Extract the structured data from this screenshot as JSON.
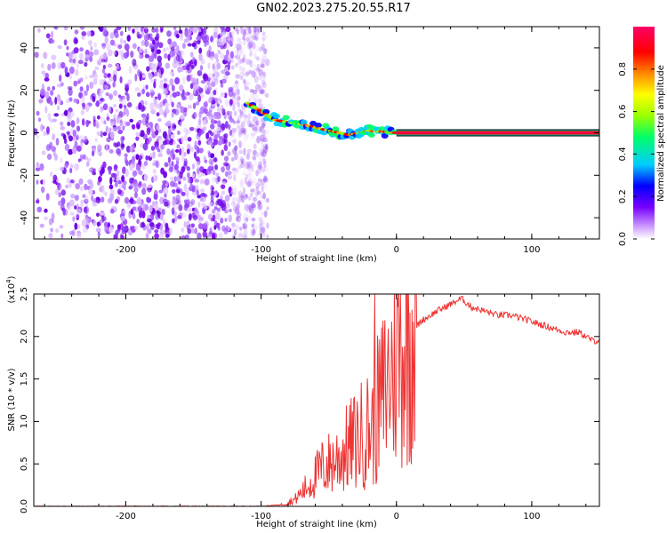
{
  "title": "GN02.2023.275.20.55.R17",
  "chart_data": [
    {
      "type": "heatmap",
      "xlabel": "Height of straight line (km)",
      "ylabel": "Frequency (Hz)",
      "xlim": [
        -268,
        150
      ],
      "ylim": [
        -50,
        50
      ],
      "xticks": [
        -200,
        -100,
        0,
        100
      ],
      "yticks": [
        -40,
        -20,
        0,
        20,
        40
      ],
      "colorbar": {
        "label": "Normalized spectral amplitude",
        "range": [
          0.0,
          1.0
        ],
        "ticks": [
          "0.0",
          "0.2",
          "0.4",
          "0.6",
          "0.8"
        ],
        "colormap": [
          "#ffffff",
          "#cc99ff",
          "#7700ff",
          "#0000ff",
          "#00ccff",
          "#00ff66",
          "#99ff00",
          "#ffff00",
          "#ff8800",
          "#ff0000",
          "#ff0066"
        ]
      },
      "description_points": {
        "noise_region_x": [
          -268,
          -105
        ],
        "signal_track": [
          {
            "x": -110,
            "y": 14
          },
          {
            "x": -90,
            "y": 6
          },
          {
            "x": -70,
            "y": 4
          },
          {
            "x": -50,
            "y": 1
          },
          {
            "x": -35,
            "y": -1
          },
          {
            "x": -20,
            "y": 1
          },
          {
            "x": 0,
            "y": 0
          },
          {
            "x": 150,
            "y": 0
          }
        ]
      }
    },
    {
      "type": "line",
      "xlabel": "Height of straight line (km)",
      "ylabel": "SNR (10 * v/v)",
      "y_multiplier": "(x10",
      "y_multiplier_exp": "4",
      "y_multiplier_close": ")",
      "xlim": [
        -268,
        150
      ],
      "ylim": [
        0,
        2.5
      ],
      "xticks": [
        -200,
        -100,
        0,
        100
      ],
      "yticks": [
        "0.0",
        "0.5",
        "1.0",
        "1.5",
        "2.0",
        "2.5"
      ],
      "color": "#ee3333",
      "series": [
        {
          "x": [
            -268,
            -200,
            -150,
            -100,
            -85,
            -75,
            -65,
            -55,
            -45,
            -35,
            -25,
            -18,
            -10,
            0,
            10,
            20,
            30,
            40,
            48,
            55,
            65,
            75,
            85,
            95,
            105,
            115,
            125,
            135,
            145,
            150
          ],
          "values": [
            0.0,
            0.0,
            0.0,
            0.0,
            0.02,
            0.08,
            0.25,
            0.45,
            0.55,
            0.7,
            0.85,
            0.95,
            1.3,
            1.75,
            2.05,
            2.2,
            2.3,
            2.38,
            2.45,
            2.35,
            2.3,
            2.25,
            2.25,
            2.2,
            2.15,
            2.1,
            2.05,
            2.05,
            1.95,
            1.95
          ]
        }
      ]
    }
  ]
}
